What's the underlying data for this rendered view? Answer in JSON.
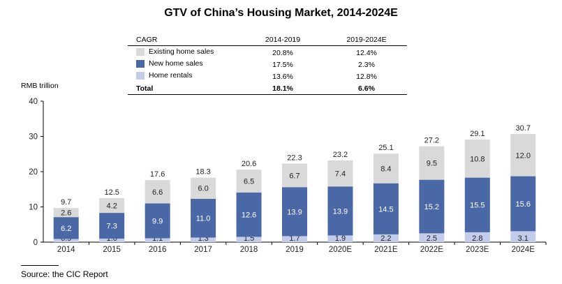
{
  "title": "GTV of China’s Housing Market, 2014-2024E",
  "cagr_table": {
    "header": "CAGR",
    "periods": [
      "2014-2019",
      "2019-2024E"
    ],
    "rows": [
      {
        "label": "Existing home sales",
        "color": "#d9d9d9",
        "values": [
          "20.8%",
          "12.4%"
        ]
      },
      {
        "label": "New home sales",
        "color": "#4a68a5",
        "values": [
          "17.5%",
          "2.3%"
        ]
      },
      {
        "label": "Home rentals",
        "color": "#c3cce9",
        "values": [
          "13.6%",
          "12.8%"
        ]
      },
      {
        "label": "Total",
        "values": [
          "18.1%",
          "6.6%"
        ]
      }
    ]
  },
  "source": "Source: the CIC Report",
  "chart_data": {
    "type": "bar",
    "stacked": true,
    "title": "GTV of China’s Housing Market, 2014-2024E",
    "ylabel": "RMB trillion",
    "xlabel": "",
    "ylim": [
      0,
      40
    ],
    "yticks": [
      "0",
      "10",
      "20",
      "30",
      "40"
    ],
    "categories": [
      "2014",
      "2015",
      "2016",
      "2017",
      "2018",
      "2019",
      "2020E",
      "2021E",
      "2022E",
      "2023E",
      "2024E"
    ],
    "series": [
      {
        "name": "Home rentals",
        "color": "#c3cce9",
        "values": [
          0.9,
          1.0,
          1.1,
          1.3,
          1.5,
          1.7,
          1.9,
          2.2,
          2.5,
          2.8,
          3.1
        ],
        "labels": [
          "0.9",
          "1.0",
          "1.1",
          "1.3",
          "1.5",
          "1.7",
          "1.9",
          "2.2",
          "2.5",
          "2.8",
          "3.1"
        ]
      },
      {
        "name": "New home sales",
        "color": "#4a68a5",
        "values": [
          6.2,
          7.3,
          9.9,
          11.0,
          12.6,
          13.9,
          13.9,
          14.5,
          15.2,
          15.5,
          15.6
        ],
        "labels": [
          "6.2",
          "7.3",
          "9.9",
          "11.0",
          "12.6",
          "13.9",
          "13.9",
          "14.5",
          "15.2",
          "15.5",
          "15.6"
        ]
      },
      {
        "name": "Existing home sales",
        "color": "#d9d9d9",
        "values": [
          2.6,
          4.2,
          6.6,
          6.0,
          6.5,
          6.7,
          7.4,
          8.4,
          9.5,
          10.8,
          12.0
        ],
        "labels": [
          "2.6",
          "4.2",
          "6.6",
          "6.0",
          "6.5",
          "6.7",
          "7.4",
          "8.4",
          "9.5",
          "10.8",
          "12.0"
        ]
      }
    ],
    "totals": [
      9.7,
      12.5,
      17.6,
      18.3,
      20.6,
      22.3,
      23.2,
      25.1,
      27.2,
      29.1,
      30.7
    ],
    "total_labels": [
      "9.7",
      "12.5",
      "17.6",
      "18.3",
      "20.6",
      "22.3",
      "23.2",
      "25.1",
      "27.2",
      "29.1",
      "30.7"
    ]
  }
}
